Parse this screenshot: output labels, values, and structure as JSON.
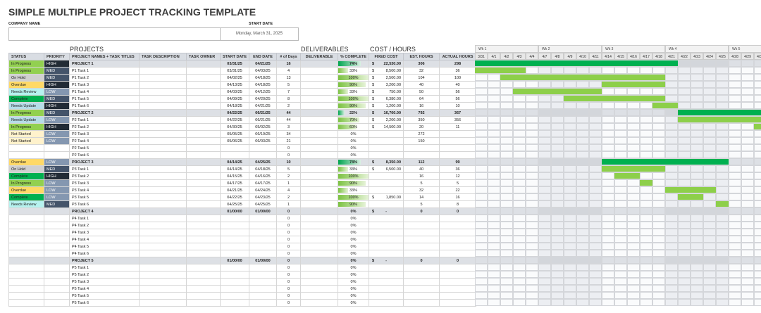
{
  "title": "SIMPLE MULTIPLE PROJECT TRACKING TEMPLATE",
  "company_label": "COMPANY NAME",
  "company_value": "",
  "start_date_label": "START DATE",
  "start_date_value": "Monday, March 31, 2025",
  "sections": {
    "projects": "PROJECTS",
    "deliverables": "DELIVERABLES",
    "cost": "COST / HOURS"
  },
  "columns": [
    "STATUS",
    "PRIORITY",
    "PROJECT NAMES + TASK TITLES",
    "TASK DESCRIPTION",
    "TASK OWNER",
    "START DATE",
    "END DATE",
    "# of Days",
    "DELIVERABLE",
    "% COMPLETE",
    "FIXED COST",
    "EST. HOURS",
    "ACTUAL HOURS"
  ],
  "colors": {
    "status": {
      "In Progress": "#92d050",
      "On Hold": "#d0d0d0",
      "Overdue": "#ffd966",
      "Needs Review": "#b6f2ef",
      "Complete": "#00b050",
      "Needs Update": "#b7dde8",
      "Not Started": "#fff2cc"
    },
    "priority": {
      "HIGH": "#222b35",
      "MED": "#44546a",
      "LOW": "#8497b0"
    },
    "gantt_project": "#00b050",
    "gantt_task": "#8dcf4a"
  },
  "gantt": {
    "weeks": [
      "Wk 1",
      "Wk 2",
      "Wk 3",
      "Wk 4",
      "Wk 5"
    ],
    "days": [
      "3/31",
      "4/1",
      "4/2",
      "4/3",
      "4/4",
      "4/7",
      "4/8",
      "4/9",
      "4/10",
      "4/11",
      "4/14",
      "4/15",
      "4/16",
      "4/17",
      "4/18",
      "4/21",
      "4/22",
      "4/23",
      "4/24",
      "4/25",
      "4/28",
      "4/29",
      "4/30"
    ]
  },
  "rows": [
    {
      "type": "project",
      "status": "In Progress",
      "priority": "HIGH",
      "name": "PROJECT 1",
      "start": "03/31/25",
      "end": "04/21/25",
      "days": "16",
      "pct": 74,
      "cost": "22,530.00",
      "est": "306",
      "actual": "298"
    },
    {
      "status": "In Progress",
      "priority": "MED",
      "name": "P1 Task 1",
      "start": "03/31/25",
      "end": "04/03/25",
      "days": "4",
      "pct": 33,
      "cost": "8,500.00",
      "est": "32",
      "actual": "36"
    },
    {
      "status": "On Hold",
      "priority": "MED",
      "name": "P1 Task 2",
      "start": "04/02/25",
      "end": "04/18/25",
      "days": "13",
      "pct": 100,
      "cost": "2,500.00",
      "est": "104",
      "actual": "100"
    },
    {
      "status": "Overdue",
      "priority": "HIGH",
      "name": "P1 Task 3",
      "start": "04/13/25",
      "end": "04/18/25",
      "days": "5",
      "pct": 90,
      "cost": "3,200.00",
      "est": "40",
      "actual": "40"
    },
    {
      "status": "Needs Review",
      "priority": "LOW",
      "name": "P1 Task 4",
      "start": "04/03/25",
      "end": "04/12/25",
      "days": "7",
      "pct": 33,
      "cost": "750.00",
      "est": "50",
      "actual": "56"
    },
    {
      "status": "Complete",
      "priority": "MED",
      "name": "P1 Task 5",
      "start": "04/09/25",
      "end": "04/20/25",
      "days": "8",
      "pct": 100,
      "cost": "6,380.00",
      "est": "64",
      "actual": "56"
    },
    {
      "status": "Needs Update",
      "priority": "HIGH",
      "name": "P1 Task 6",
      "start": "04/18/25",
      "end": "04/21/25",
      "days": "2",
      "pct": 90,
      "cost": "1,200.00",
      "est": "16",
      "actual": "10"
    },
    {
      "type": "project",
      "status": "In Progress",
      "priority": "MED",
      "name": "PROJECT 2",
      "start": "04/22/25",
      "end": "06/21/25",
      "days": "44",
      "pct": 22,
      "cost": "16,700.00",
      "est": "792",
      "actual": "367"
    },
    {
      "status": "Needs Update",
      "priority": "LOW",
      "name": "P2 Task 1",
      "start": "04/22/25",
      "end": "06/21/25",
      "days": "44",
      "pct": 70,
      "cost": "2,200.00",
      "est": "350",
      "actual": "356"
    },
    {
      "status": "In Progress",
      "priority": "HIGH",
      "name": "P2 Task 2",
      "start": "04/30/25",
      "end": "05/02/25",
      "days": "3",
      "pct": 60,
      "cost": "14,500.00",
      "est": "20",
      "actual": "11"
    },
    {
      "status": "Not Started",
      "priority": "LOW",
      "name": "P2 Task 3",
      "start": "05/05/25",
      "end": "06/19/25",
      "days": "34",
      "pct": 0,
      "cost": "",
      "est": "272",
      "actual": ""
    },
    {
      "status": "Not Started",
      "priority": "LOW",
      "name": "P2 Task 4",
      "start": "05/06/25",
      "end": "06/03/25",
      "days": "21",
      "pct": 0,
      "cost": "",
      "est": "150",
      "actual": ""
    },
    {
      "status": "",
      "priority": "",
      "name": "P2 Task 5",
      "start": "",
      "end": "",
      "days": "0",
      "pct": 0,
      "cost": "",
      "est": "",
      "actual": ""
    },
    {
      "status": "",
      "priority": "",
      "name": "P2 Task 6",
      "start": "",
      "end": "",
      "days": "0",
      "pct": 0,
      "cost": "",
      "est": "",
      "actual": ""
    },
    {
      "type": "project",
      "status": "Overdue",
      "priority": "LOW",
      "name": "PROJECT 3",
      "start": "04/14/25",
      "end": "04/25/25",
      "days": "10",
      "pct": 74,
      "cost": "8,350.00",
      "est": "112",
      "actual": "99"
    },
    {
      "status": "On Hold",
      "priority": "MED",
      "name": "P3 Task 1",
      "start": "04/14/25",
      "end": "04/18/25",
      "days": "5",
      "pct": 33,
      "cost": "6,500.00",
      "est": "40",
      "actual": "36"
    },
    {
      "status": "Complete",
      "priority": "HIGH",
      "name": "P3 Task 2",
      "start": "04/15/25",
      "end": "04/16/25",
      "days": "2",
      "pct": 100,
      "cost": "",
      "est": "16",
      "actual": "12"
    },
    {
      "status": "In Progress",
      "priority": "LOW",
      "name": "P3 Task 3",
      "start": "04/17/25",
      "end": "04/17/25",
      "days": "1",
      "pct": 90,
      "cost": "",
      "est": "5",
      "actual": "5"
    },
    {
      "status": "Overdue",
      "priority": "LOW",
      "name": "P3 Task 4",
      "start": "04/21/25",
      "end": "04/24/25",
      "days": "4",
      "pct": 33,
      "cost": "",
      "est": "32",
      "actual": "22"
    },
    {
      "status": "Complete",
      "priority": "LOW",
      "name": "P3 Task 5",
      "start": "04/22/25",
      "end": "04/23/25",
      "days": "2",
      "pct": 100,
      "cost": "1,850.00",
      "est": "14",
      "actual": "16"
    },
    {
      "status": "Needs Review",
      "priority": "MED",
      "name": "P3 Task 6",
      "start": "04/25/25",
      "end": "04/25/25",
      "days": "1",
      "pct": 90,
      "cost": "",
      "est": "5",
      "actual": "8"
    },
    {
      "type": "project",
      "status": "",
      "priority": "",
      "name": "PROJECT 4",
      "start": "01/00/00",
      "end": "01/00/00",
      "days": "0",
      "pct": 0,
      "cost": "-",
      "est": "0",
      "actual": "0"
    },
    {
      "status": "",
      "priority": "",
      "name": "P4 Task 1",
      "start": "",
      "end": "",
      "days": "0",
      "pct": 0,
      "cost": "",
      "est": "",
      "actual": ""
    },
    {
      "status": "",
      "priority": "",
      "name": "P4 Task 2",
      "start": "",
      "end": "",
      "days": "0",
      "pct": 0,
      "cost": "",
      "est": "",
      "actual": ""
    },
    {
      "status": "",
      "priority": "",
      "name": "P4 Task 3",
      "start": "",
      "end": "",
      "days": "0",
      "pct": 0,
      "cost": "",
      "est": "",
      "actual": ""
    },
    {
      "status": "",
      "priority": "",
      "name": "P4 Task 4",
      "start": "",
      "end": "",
      "days": "0",
      "pct": 0,
      "cost": "",
      "est": "",
      "actual": ""
    },
    {
      "status": "",
      "priority": "",
      "name": "P4 Task 5",
      "start": "",
      "end": "",
      "days": "0",
      "pct": 0,
      "cost": "",
      "est": "",
      "actual": ""
    },
    {
      "status": "",
      "priority": "",
      "name": "P4 Task 6",
      "start": "",
      "end": "",
      "days": "0",
      "pct": 0,
      "cost": "",
      "est": "",
      "actual": ""
    },
    {
      "type": "project",
      "status": "",
      "priority": "",
      "name": "PROJECT 5",
      "start": "01/00/00",
      "end": "01/00/00",
      "days": "0",
      "pct": 0,
      "cost": "-",
      "est": "0",
      "actual": "0"
    },
    {
      "status": "",
      "priority": "",
      "name": "P5 Task 1",
      "start": "",
      "end": "",
      "days": "0",
      "pct": 0,
      "cost": "",
      "est": "",
      "actual": ""
    },
    {
      "status": "",
      "priority": "",
      "name": "P5 Task 2",
      "start": "",
      "end": "",
      "days": "0",
      "pct": 0,
      "cost": "",
      "est": "",
      "actual": ""
    },
    {
      "status": "",
      "priority": "",
      "name": "P5 Task 3",
      "start": "",
      "end": "",
      "days": "0",
      "pct": 0,
      "cost": "",
      "est": "",
      "actual": ""
    },
    {
      "status": "",
      "priority": "",
      "name": "P5 Task 4",
      "start": "",
      "end": "",
      "days": "0",
      "pct": 0,
      "cost": "",
      "est": "",
      "actual": ""
    },
    {
      "status": "",
      "priority": "",
      "name": "P5 Task 5",
      "start": "",
      "end": "",
      "days": "0",
      "pct": 0,
      "cost": "",
      "est": "",
      "actual": ""
    },
    {
      "status": "",
      "priority": "",
      "name": "P5 Task 6",
      "start": "",
      "end": "",
      "days": "0",
      "pct": 0,
      "cost": "",
      "est": "",
      "actual": ""
    }
  ]
}
